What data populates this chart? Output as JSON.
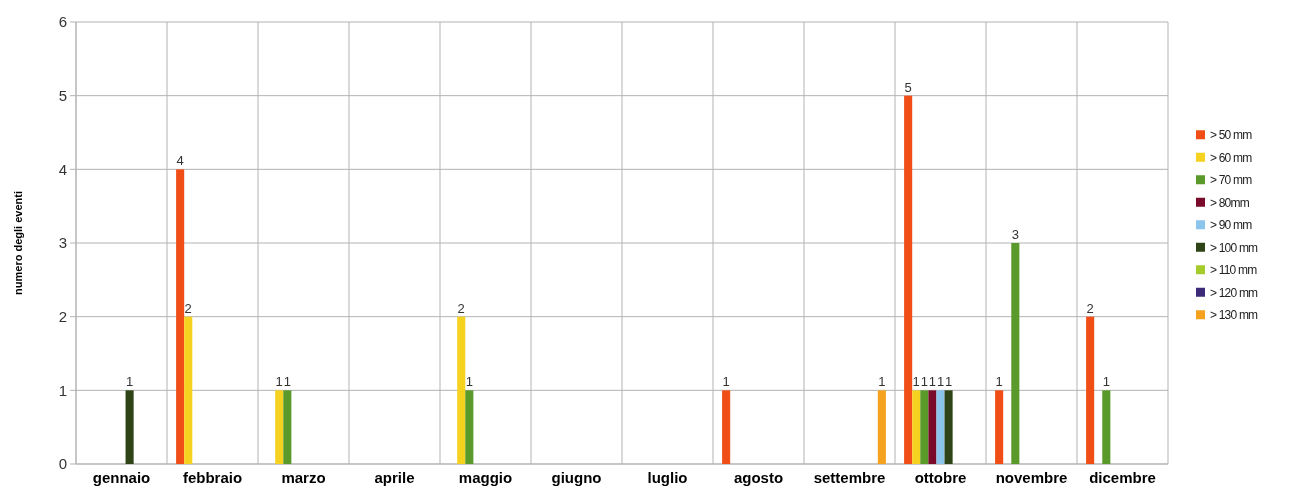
{
  "chart_data": {
    "type": "bar",
    "ylabel": "numero degli eventi",
    "categories": [
      "gennaio",
      "febbraio",
      "marzo",
      "aprile",
      "maggio",
      "giugno",
      "luglio",
      "agosto",
      "settembre",
      "ottobre",
      "novembre",
      "dicembre"
    ],
    "series": [
      {
        "name": "> 50 mm",
        "color": "#f04e16",
        "values": [
          null,
          4,
          null,
          null,
          null,
          null,
          null,
          1,
          null,
          5,
          1,
          2
        ]
      },
      {
        "name": "> 60 mm",
        "color": "#f5d21f",
        "values": [
          null,
          2,
          1,
          null,
          2,
          null,
          null,
          null,
          null,
          1,
          null,
          null
        ]
      },
      {
        "name": "> 70 mm",
        "color": "#5a9a2a",
        "values": [
          null,
          null,
          1,
          null,
          1,
          null,
          null,
          null,
          null,
          1,
          3,
          1
        ]
      },
      {
        "name": "> 80mm",
        "color": "#7a0a2a",
        "values": [
          null,
          null,
          null,
          null,
          null,
          null,
          null,
          null,
          null,
          1,
          null,
          null
        ]
      },
      {
        "name": "> 90 mm",
        "color": "#8cc4ec",
        "values": [
          null,
          null,
          null,
          null,
          null,
          null,
          null,
          null,
          null,
          1,
          null,
          null
        ]
      },
      {
        "name": "> 100 mm",
        "color": "#2e4416",
        "values": [
          1,
          null,
          null,
          null,
          null,
          null,
          null,
          null,
          null,
          1,
          null,
          null
        ]
      },
      {
        "name": "> 110 mm",
        "color": "#a6cc2c",
        "values": [
          null,
          null,
          null,
          null,
          null,
          null,
          null,
          null,
          null,
          null,
          null,
          null
        ]
      },
      {
        "name": "> 120 mm",
        "color": "#3c2a78",
        "values": [
          null,
          null,
          null,
          null,
          null,
          null,
          null,
          null,
          null,
          null,
          null,
          null
        ]
      },
      {
        "name": "> 130 mm",
        "color": "#f5a21f",
        "values": [
          null,
          null,
          null,
          null,
          null,
          null,
          null,
          null,
          1,
          null,
          null,
          null
        ]
      }
    ],
    "ylim": [
      0,
      6
    ],
    "yticks": [
      0,
      1,
      2,
      3,
      4,
      5,
      6
    ],
    "grid": true,
    "legend": "right",
    "data_labels": true
  }
}
